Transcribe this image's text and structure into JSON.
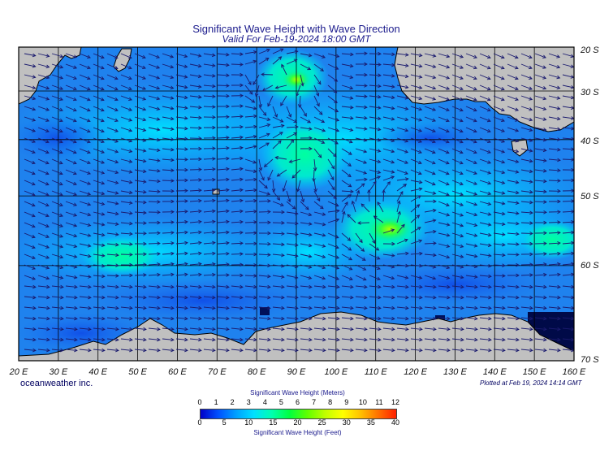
{
  "header": {
    "title": "Significant Wave Height with Wave Direction",
    "subtitle": "Valid For Feb-19-2024 18:00 GMT"
  },
  "map": {
    "lon_range": [
      20,
      160
    ],
    "lat_range": [
      -20,
      -70
    ],
    "lat_labels": [
      "20 S",
      "30 S",
      "40 S",
      "50 S",
      "60 S",
      "70 S"
    ],
    "lon_labels": [
      "20 E",
      "30 E",
      "40 E",
      "50 E",
      "60 E",
      "70 E",
      "80 E",
      "90 E",
      "100 E",
      "110 E",
      "120 E",
      "130 E",
      "140 E",
      "150 E",
      "160 E"
    ],
    "colors": {
      "land": "#c0c0c0",
      "ocean_base": "#1f82ee",
      "arrow": "#1a1a6e",
      "grid": "#000000"
    }
  },
  "footer": {
    "brand": "oceanweather inc.",
    "plotted": "Plotted at Feb 19, 2024 14:14 GMT"
  },
  "colorbar": {
    "title_meters": "Significant Wave Height (Meters)",
    "title_feet": "Significant Wave Height (Feet)",
    "meters_ticks": [
      "0",
      "1",
      "2",
      "3",
      "4",
      "5",
      "6",
      "7",
      "8",
      "9",
      "10",
      "11",
      "12"
    ],
    "feet_ticks": [
      "0",
      "5",
      "10",
      "15",
      "20",
      "25",
      "30",
      "35",
      "40"
    ],
    "colors": [
      "#0000c8",
      "#0050ff",
      "#00a0ff",
      "#00e0ff",
      "#00ffb0",
      "#00ff40",
      "#60ff00",
      "#c0ff00",
      "#ffff00",
      "#ffc000",
      "#ff7000",
      "#ff2000"
    ]
  }
}
